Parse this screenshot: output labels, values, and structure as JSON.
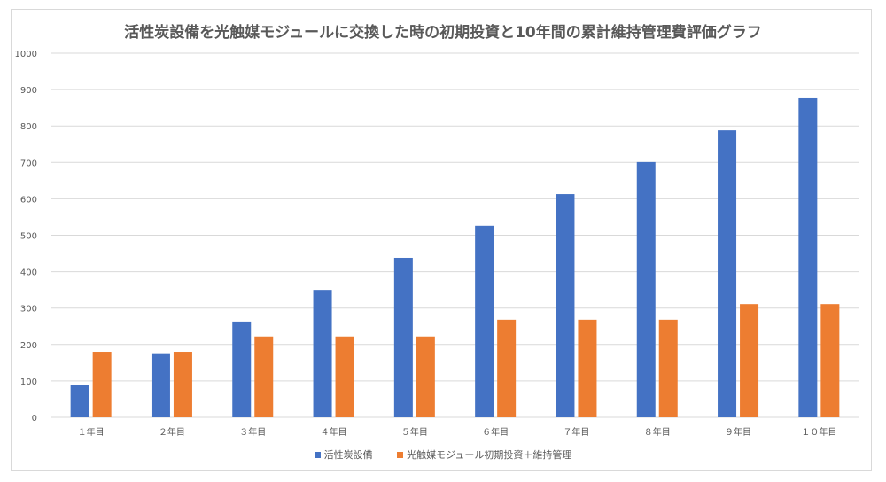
{
  "chart_data": {
    "type": "bar",
    "title": "活性炭設備を光触媒モジュールに交換した時の初期投資と10年間の累計維持管理費評価グラフ",
    "categories": [
      "１年目",
      "２年目",
      "３年目",
      "４年目",
      "５年目",
      "６年目",
      "７年目",
      "８年目",
      "９年目",
      "１０年目"
    ],
    "series": [
      {
        "name": "活性炭設備",
        "color": "#4472C4",
        "values": [
          88,
          176,
          263,
          350,
          438,
          526,
          613,
          701,
          788,
          876
        ]
      },
      {
        "name": "光触媒モジュール初期投資＋維持管理",
        "color": "#ED7D31",
        "values": [
          180,
          180,
          222,
          222,
          222,
          268,
          268,
          268,
          311,
          311
        ]
      }
    ],
    "ylim": [
      0,
      1000
    ],
    "yticks": [
      "0",
      "100",
      "200",
      "300",
      "400",
      "500",
      "600",
      "700",
      "800",
      "900",
      "1000"
    ],
    "grid": true,
    "legend": "bottom"
  }
}
